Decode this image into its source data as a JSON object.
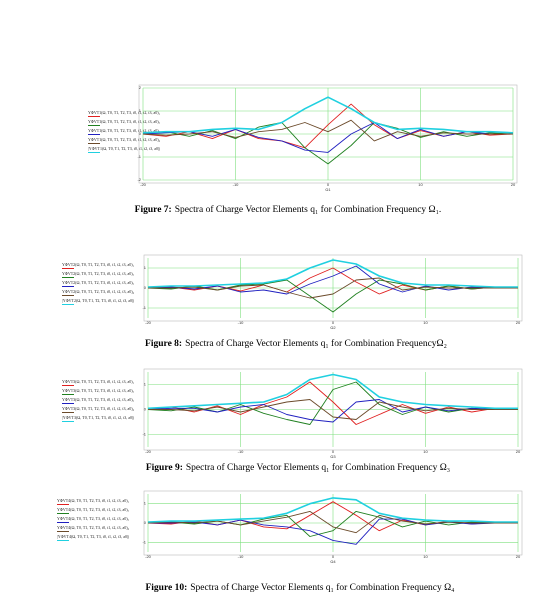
{
  "chart_data": [
    {
      "type": "line",
      "figure_label": "Figure 7:",
      "title": "Spectra of Charge Vector Elements q₁ for Combination Frequency Ω₁.",
      "x_label": "Ω1",
      "xlim": [
        -20,
        20
      ],
      "xticks": [
        -20,
        -10,
        0,
        10,
        20
      ],
      "ylim": [
        -2,
        2
      ],
      "yticks": [
        -2,
        -1,
        0,
        1,
        2
      ],
      "grid": true,
      "x": [
        -20,
        -17.5,
        -15,
        -12.5,
        -10,
        -7.5,
        -5,
        -2.5,
        0,
        2.5,
        5,
        7.5,
        10,
        12.5,
        15,
        17.5,
        20
      ],
      "series": [
        {
          "name": "YΦVT1(Ω, T0, T1, T2, T3, t0, t1, t2, t3, a0)₁",
          "color": "#e02020",
          "values": [
            0,
            -0.1,
            0.1,
            -0.2,
            0.2,
            -0.2,
            -0.3,
            -0.6,
            0.4,
            1.3,
            0.4,
            -0.2,
            0.15,
            -0.1,
            0.1,
            -0.05,
            0
          ]
        },
        {
          "name": "YΦVT1(Ω, T0, T1, T2, T3, t0, t1, t2, t3, a0)₂",
          "color": "#208020",
          "values": [
            0,
            0.1,
            -0.1,
            0.15,
            -0.2,
            0.3,
            0.5,
            -0.6,
            -1.3,
            -0.5,
            0.5,
            0.25,
            -0.15,
            0.1,
            -0.1,
            0.05,
            0
          ]
        },
        {
          "name": "YΦVT1(Ω, T0, T1, T2, T3, t0, t1, t2, t3, a0)₃",
          "color": "#2020c0",
          "values": [
            0,
            0.05,
            0.1,
            -0.1,
            0.2,
            -0.15,
            -0.3,
            -0.7,
            -0.8,
            0,
            0.5,
            -0.2,
            0.2,
            -0.1,
            0.1,
            0,
            0
          ]
        },
        {
          "name": "YΦVT1(Ω, T0, T1, T2, T3, t0, t1, t2, t3, a0)₄",
          "color": "#6b4a2a",
          "values": [
            0,
            -0.05,
            0,
            0.1,
            -0.15,
            0.1,
            0.2,
            0.5,
            0.1,
            0.6,
            -0.3,
            0.1,
            -0.1,
            0.05,
            0,
            0,
            0
          ]
        },
        {
          "name": "|YΦVT1(Ω, T0, T1, T2, T3, t0, t1, t2, t3, a0)|",
          "color": "#20d0e0",
          "values": [
            0.05,
            0.1,
            0.1,
            0.2,
            0.25,
            0.2,
            0.5,
            1.1,
            1.6,
            1.1,
            0.5,
            0.2,
            0.25,
            0.2,
            0.1,
            0.1,
            0.05
          ]
        }
      ]
    },
    {
      "type": "line",
      "figure_label": "Figure 8:",
      "title": "Spectra of Charge Vector Elements q₁ for Combination FrequencyΩ₂",
      "x_label": "Ω2",
      "xlim": [
        -20,
        20
      ],
      "xticks": [
        -20,
        -10,
        0,
        10,
        20
      ],
      "ylim": [
        -1.5,
        1.5
      ],
      "yticks": [
        -1,
        0,
        1
      ],
      "grid": true,
      "x": [
        -20,
        -17.5,
        -15,
        -12.5,
        -10,
        -7.5,
        -5,
        -2.5,
        0,
        2.5,
        5,
        7.5,
        10,
        12.5,
        15,
        17.5,
        20
      ],
      "series": [
        {
          "name": "YΦVT2(Ω, T0, T1, T2, T3, t0, t1, t2, t3, a0)₁",
          "color": "#e02020",
          "values": [
            0,
            0.05,
            -0.1,
            0.1,
            -0.15,
            0.15,
            -0.2,
            0.5,
            1.0,
            0.3,
            -0.3,
            0.15,
            -0.1,
            0.1,
            -0.05,
            0.05,
            0
          ]
        },
        {
          "name": "YΦVT2(Ω, T0, T1, T2, T3, t0, t1, t2, t3, a0)₂",
          "color": "#208020",
          "values": [
            0,
            -0.05,
            0.1,
            -0.1,
            0.15,
            0.2,
            0.4,
            -0.4,
            -1.2,
            -0.3,
            0.4,
            0.2,
            -0.1,
            0.1,
            -0.05,
            0.05,
            0
          ]
        },
        {
          "name": "YΦVT2(Ω, T0, T1, T2, T3, t0, t1, t2, t3, a0)₃",
          "color": "#2020c0",
          "values": [
            0,
            0.05,
            -0.05,
            0.1,
            -0.2,
            -0.1,
            -0.3,
            0.2,
            0.6,
            1.1,
            0.2,
            -0.2,
            0.1,
            -0.1,
            0.05,
            0,
            0
          ]
        },
        {
          "name": "YΦVT2(Ω, T0, T1, T2, T3, t0, t1, t2, t3, a0)₄",
          "color": "#6b4a2a",
          "values": [
            0,
            0,
            0.05,
            -0.1,
            0.1,
            0.15,
            -0.2,
            -0.5,
            -0.3,
            0.4,
            0.5,
            -0.1,
            0.05,
            0,
            0,
            0,
            0
          ]
        },
        {
          "name": "|YΦVT2(Ω, T0, T1, T2, T3, t0, t1, t2, t3, a0)|",
          "color": "#20d0e0",
          "values": [
            0.05,
            0.1,
            0.1,
            0.15,
            0.2,
            0.25,
            0.45,
            1.0,
            1.4,
            1.2,
            0.6,
            0.25,
            0.15,
            0.15,
            0.1,
            0.05,
            0.05
          ]
        }
      ]
    },
    {
      "type": "line",
      "figure_label": "Figure 9:",
      "title": "Spectra of Charge Vector Elements q₁ for Combination Frequency Ω₃",
      "x_label": "Ω3",
      "xlim": [
        -20,
        20
      ],
      "xticks": [
        -20,
        -10,
        0,
        10,
        20
      ],
      "ylim": [
        -1.5,
        1.5
      ],
      "yticks": [
        -1,
        0,
        1
      ],
      "grid": true,
      "x": [
        -20,
        -17.5,
        -15,
        -12.5,
        -10,
        -7.5,
        -5,
        -2.5,
        0,
        2.5,
        5,
        7.5,
        10,
        12.5,
        15,
        17.5,
        20
      ],
      "series": [
        {
          "name": "YΦVT3(Ω, T0, T1, T2, T3, t0, t1, t2, t3, a0)₁",
          "color": "#e02020",
          "values": [
            0,
            0.1,
            -0.1,
            0.15,
            -0.2,
            0.2,
            0.5,
            1.1,
            0.3,
            -0.6,
            -0.2,
            0.2,
            -0.15,
            0.1,
            -0.1,
            0.05,
            0
          ]
        },
        {
          "name": "YΦVT3(Ω, T0, T1, T2, T3, t0, t1, t2, t3, a0)₂",
          "color": "#208020",
          "values": [
            0,
            -0.05,
            0.1,
            -0.1,
            0.2,
            -0.15,
            -0.4,
            -0.6,
            0.8,
            1.1,
            0.2,
            -0.2,
            0.1,
            -0.1,
            0.05,
            0,
            0
          ]
        },
        {
          "name": "YΦVT3(Ω, T0, T1, T2, T3, t0, t1, t2, t3, a0)₃",
          "color": "#2020c0",
          "values": [
            0,
            0.05,
            0.05,
            -0.1,
            0.1,
            0.2,
            -0.2,
            -0.4,
            -0.5,
            0.3,
            0.4,
            -0.1,
            0.1,
            -0.05,
            0.05,
            0,
            0
          ]
        },
        {
          "name": "YΦVT3(Ω, T0, T1, T2, T3, t0, t1, t2, t3, a0)₄",
          "color": "#6b4a2a",
          "values": [
            0,
            0,
            -0.05,
            0.1,
            -0.1,
            0.1,
            0.3,
            0.4,
            -0.3,
            -0.4,
            0.3,
            0.1,
            -0.05,
            0.05,
            0,
            0,
            0
          ]
        },
        {
          "name": "|YΦVT3(Ω, T0, T1, T2, T3, t0, t1, t2, t3, a0)|",
          "color": "#20d0e0",
          "values": [
            0.05,
            0.1,
            0.15,
            0.2,
            0.25,
            0.3,
            0.6,
            1.2,
            1.4,
            1.2,
            0.5,
            0.3,
            0.2,
            0.15,
            0.1,
            0.05,
            0.05
          ]
        }
      ]
    },
    {
      "type": "line",
      "figure_label": "Figure 10:",
      "title": "Spectra of Charge Vector Elements q₁ for Combination Frequency Ω₄",
      "x_label": "Ω4",
      "xlim": [
        -20,
        20
      ],
      "xticks": [
        -20,
        -10,
        0,
        10,
        20
      ],
      "ylim": [
        -1.5,
        1.5
      ],
      "yticks": [
        -1,
        0,
        1
      ],
      "grid": true,
      "x": [
        -20,
        -17.5,
        -15,
        -12.5,
        -10,
        -7.5,
        -5,
        -2.5,
        0,
        2.5,
        5,
        7.5,
        10,
        12.5,
        15,
        17.5,
        20
      ],
      "series": [
        {
          "name": "YΦVT4(Ω, T0, T1, T2, T3, t0, t1, t2, t3, a0)₁",
          "color": "#e02020",
          "values": [
            0,
            -0.05,
            0.1,
            -0.1,
            0.15,
            -0.2,
            -0.3,
            0.4,
            1.1,
            0.4,
            -0.4,
            0.15,
            -0.1,
            0.1,
            -0.05,
            0.05,
            0
          ]
        },
        {
          "name": "YΦVT4(Ω, T0, T1, T2, T3, t0, t1, t2, t3, a0)₂",
          "color": "#208020",
          "values": [
            0,
            0.05,
            -0.05,
            0.1,
            -0.1,
            0.2,
            0.4,
            -0.7,
            -0.4,
            0.6,
            0.3,
            -0.2,
            0.1,
            -0.1,
            0.05,
            0,
            0
          ]
        },
        {
          "name": "YΦVT4(Ω, T0, T1, T2, T3, t0, t1, t2, t3, a0)₃",
          "color": "#2020c0",
          "values": [
            0,
            0,
            0.05,
            -0.1,
            0.15,
            -0.1,
            -0.2,
            -0.4,
            -0.9,
            -1.1,
            0.2,
            0.2,
            -0.1,
            0.05,
            -0.05,
            0,
            0
          ]
        },
        {
          "name": "YΦVT4(Ω, T0, T1, T2, T3, t0, t1, t2, t3, a0)₄",
          "color": "#6b4a2a",
          "values": [
            0,
            0.05,
            0,
            0.1,
            -0.1,
            0.1,
            0.3,
            0.6,
            -0.2,
            -0.5,
            0.4,
            0.1,
            -0.05,
            0.05,
            0,
            0,
            0
          ]
        },
        {
          "name": "|YΦVT4(Ω, T0, T1, T2, T3, t0, t1, t2, t3, a0)|",
          "color": "#20d0e0",
          "values": [
            0.05,
            0.1,
            0.1,
            0.15,
            0.2,
            0.25,
            0.5,
            1.0,
            1.3,
            1.2,
            0.5,
            0.25,
            0.15,
            0.1,
            0.1,
            0.05,
            0.05
          ]
        }
      ]
    }
  ]
}
